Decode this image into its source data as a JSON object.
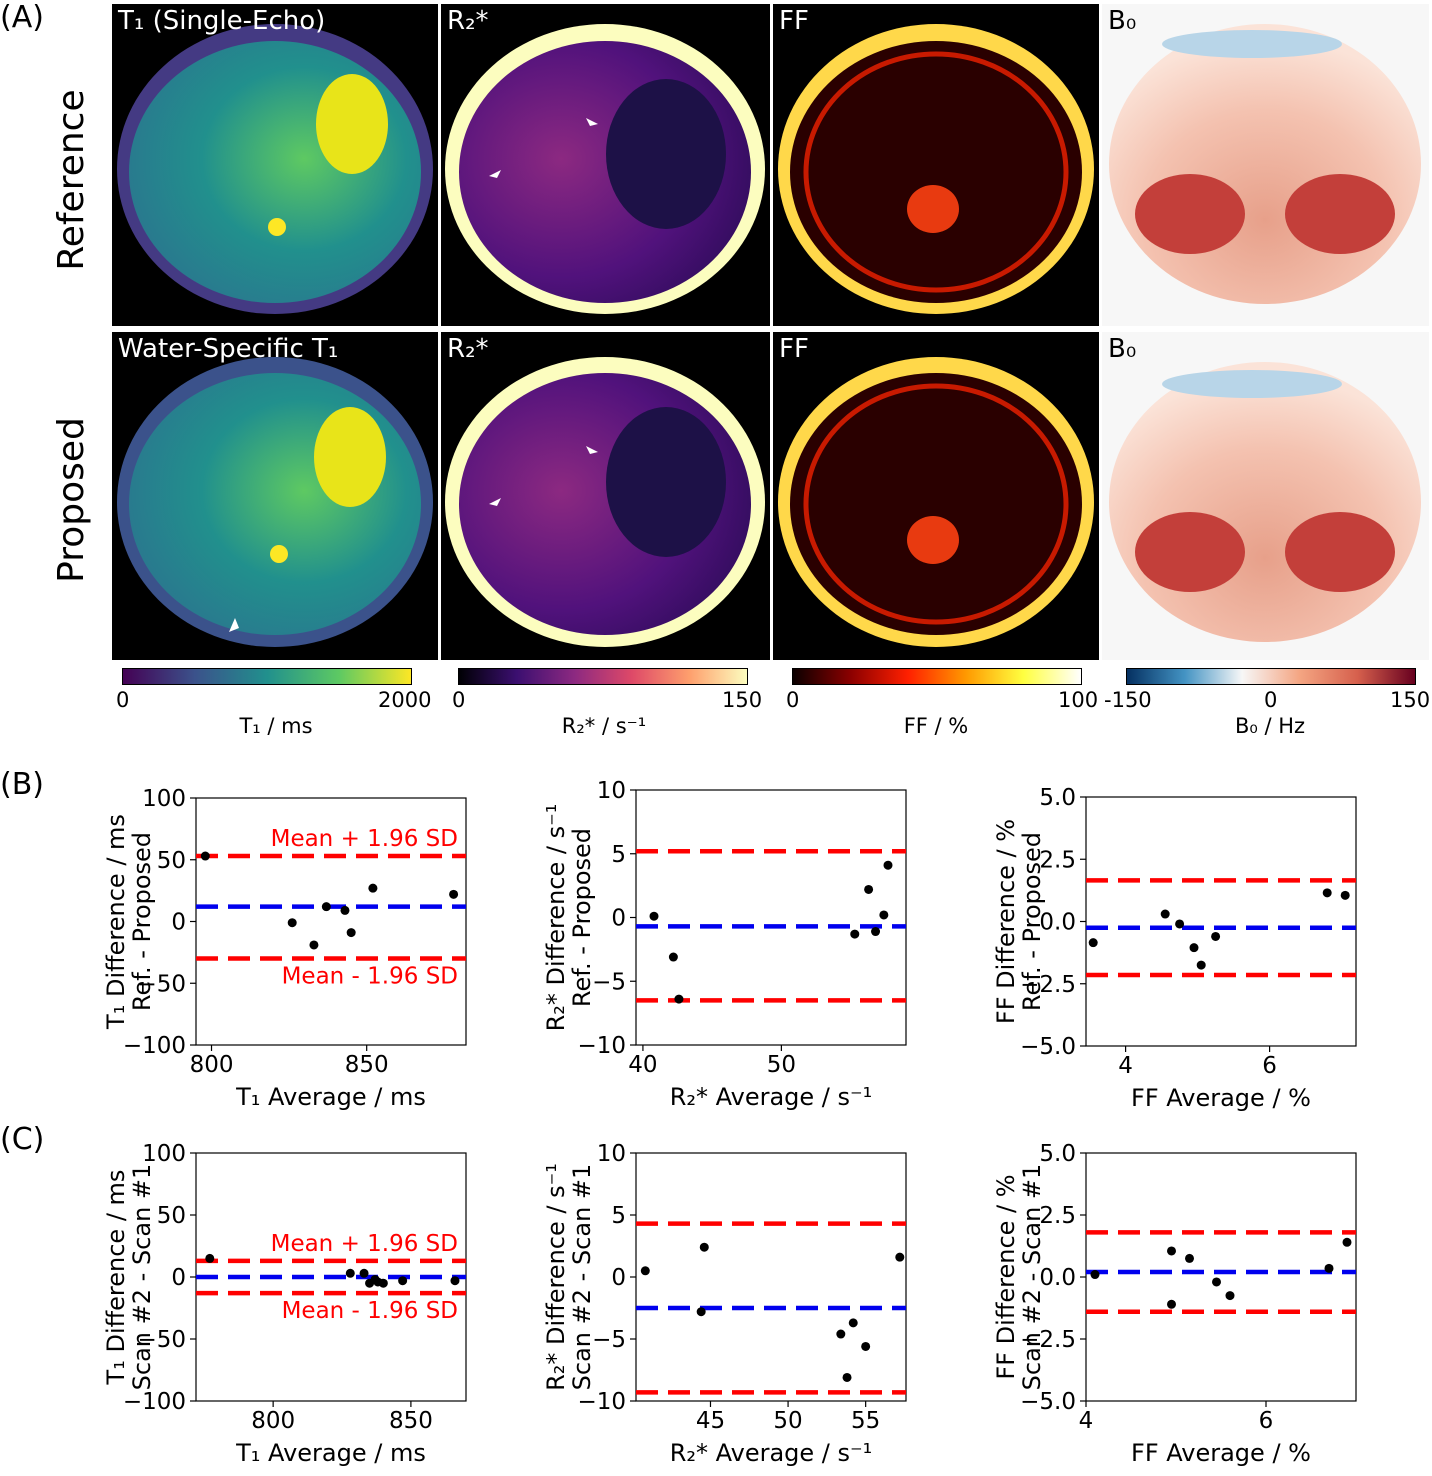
{
  "panels": {
    "a": "(A)",
    "b": "(B)",
    "c": "(C)"
  },
  "rows": {
    "reference": "Reference",
    "proposed": "Proposed"
  },
  "maps": {
    "reference": [
      {
        "title": "T₁ (Single-Echo)",
        "cmap": "viridis"
      },
      {
        "title": "R₂*",
        "cmap": "magma"
      },
      {
        "title": "FF",
        "cmap": "hot"
      },
      {
        "title": "B₀",
        "cmap": "rdbu"
      }
    ],
    "proposed": [
      {
        "title": "Water-Specific T₁",
        "cmap": "viridis"
      },
      {
        "title": "R₂*",
        "cmap": "magma"
      },
      {
        "title": "FF",
        "cmap": "hot"
      },
      {
        "title": "B₀",
        "cmap": "rdbu"
      }
    ]
  },
  "colorbars": [
    {
      "min": "0",
      "max": "2000",
      "label": "T₁ / ms",
      "colors": [
        "#440154",
        "#3b528b",
        "#21908d",
        "#5dc963",
        "#fde725"
      ]
    },
    {
      "min": "0",
      "max": "150",
      "label": "R₂* / s⁻¹",
      "colors": [
        "#000004",
        "#3b0f70",
        "#8c2981",
        "#de4968",
        "#fe9f6d",
        "#fcfdbf"
      ]
    },
    {
      "min": "0",
      "max": "100",
      "label": "FF / %",
      "colors": [
        "#0b0000",
        "#8b0000",
        "#ff2000",
        "#ff9900",
        "#ffff40",
        "#ffffff"
      ]
    },
    {
      "min": "-150",
      "mid": "0",
      "max": "150",
      "label": "B₀ / Hz",
      "colors": [
        "#053061",
        "#4393c3",
        "#f7f7f7",
        "#f4a582",
        "#d6604d",
        "#67001f"
      ]
    }
  ],
  "annotations": {
    "upper": "Mean + 1.96 SD",
    "lower": "Mean - 1.96 SD"
  },
  "colors": {
    "mean": "#0000ee",
    "limits": "#ff0000",
    "points": "#000000"
  },
  "chart_data": [
    {
      "id": "b1",
      "type": "scatter",
      "xlabel": "T₁ Average / ms",
      "ylabel": [
        "T₁ Difference / ms",
        "Ref. - Proposed"
      ],
      "xlim": [
        795,
        882
      ],
      "ylim": [
        -100,
        100
      ],
      "xticks": [
        800,
        850
      ],
      "yticks": [
        -100,
        -50,
        0,
        50,
        100
      ],
      "mean": 12,
      "upper": 53,
      "lower": -30,
      "annotate": true,
      "points": [
        [
          798,
          53
        ],
        [
          826,
          -1
        ],
        [
          833,
          -19
        ],
        [
          837,
          12
        ],
        [
          843,
          9
        ],
        [
          845,
          -9
        ],
        [
          852,
          27
        ],
        [
          878,
          22
        ]
      ]
    },
    {
      "id": "b2",
      "type": "scatter",
      "xlabel": "R₂* Average / s⁻¹",
      "ylabel": [
        "R₂* Difference / s⁻¹",
        "Ref. - Proposed"
      ],
      "xlim": [
        39.5,
        59
      ],
      "ylim": [
        -10,
        10
      ],
      "xticks": [
        40,
        50
      ],
      "yticks": [
        -10,
        -5,
        0,
        5,
        10
      ],
      "mean": -0.7,
      "upper": 5.2,
      "lower": -6.5,
      "annotate": false,
      "points": [
        [
          40.8,
          0.1
        ],
        [
          42.2,
          -3.1
        ],
        [
          42.6,
          -6.4
        ],
        [
          55.3,
          -1.3
        ],
        [
          56.3,
          2.2
        ],
        [
          56.8,
          -1.1
        ],
        [
          57.4,
          0.2
        ],
        [
          57.7,
          4.1
        ]
      ]
    },
    {
      "id": "b3",
      "type": "scatter",
      "xlabel": "FF Average / %",
      "ylabel": [
        "FF Difference / %",
        "Ref. - Proposed"
      ],
      "xlim": [
        3.45,
        7.2
      ],
      "ylim": [
        -5,
        5
      ],
      "xticks": [
        4,
        6
      ],
      "yticks": [
        -5.0,
        -2.5,
        0.0,
        2.5,
        5.0
      ],
      "mean": -0.25,
      "upper": 1.65,
      "lower": -2.15,
      "annotate": false,
      "points": [
        [
          3.55,
          -0.85
        ],
        [
          4.55,
          0.3
        ],
        [
          4.75,
          -0.1
        ],
        [
          4.95,
          -1.05
        ],
        [
          5.05,
          -1.75
        ],
        [
          5.25,
          -0.6
        ],
        [
          6.8,
          1.15
        ],
        [
          7.05,
          1.05
        ]
      ]
    },
    {
      "id": "c1",
      "type": "scatter",
      "xlabel": "T₁ Average / ms",
      "ylabel": [
        "T₁ Difference / ms",
        "Scan #2 - Scan #1"
      ],
      "xlim": [
        772,
        870
      ],
      "ylim": [
        -100,
        100
      ],
      "xticks": [
        800,
        850
      ],
      "yticks": [
        -100,
        -50,
        0,
        50,
        100
      ],
      "mean": 0,
      "upper": 13,
      "lower": -13,
      "annotate": true,
      "points": [
        [
          777,
          15
        ],
        [
          828,
          3
        ],
        [
          833,
          3
        ],
        [
          835,
          -5
        ],
        [
          837,
          -2
        ],
        [
          838,
          -4
        ],
        [
          840,
          -5
        ],
        [
          847,
          -3
        ],
        [
          866,
          -3
        ]
      ]
    },
    {
      "id": "c2",
      "type": "scatter",
      "xlabel": "R₂* Average / s⁻¹",
      "ylabel": [
        "R₂* Difference / s⁻¹",
        "Scan #2 - Scan #1"
      ],
      "xlim": [
        40.2,
        57.6
      ],
      "ylim": [
        -10,
        10
      ],
      "xticks": [
        45,
        50,
        55
      ],
      "yticks": [
        -10,
        -5,
        0,
        5,
        10
      ],
      "mean": -2.5,
      "upper": 4.3,
      "lower": -9.3,
      "annotate": false,
      "points": [
        [
          40.8,
          0.5
        ],
        [
          44.4,
          -2.8
        ],
        [
          44.6,
          2.4
        ],
        [
          53.4,
          -4.6
        ],
        [
          53.8,
          -8.1
        ],
        [
          54.2,
          -3.7
        ],
        [
          55.0,
          -5.6
        ],
        [
          57.2,
          1.6
        ]
      ]
    },
    {
      "id": "c3",
      "type": "scatter",
      "xlabel": "FF Average / %",
      "ylabel": [
        "FF Difference / %",
        "Scan #2 - Scan #1"
      ],
      "xlim": [
        4.0,
        7.0
      ],
      "ylim": [
        -5,
        5
      ],
      "xticks": [
        4,
        6
      ],
      "yticks": [
        -5.0,
        -2.5,
        0.0,
        2.5,
        5.0
      ],
      "mean": 0.2,
      "upper": 1.8,
      "lower": -1.4,
      "annotate": false,
      "points": [
        [
          4.1,
          0.1
        ],
        [
          4.95,
          -1.1
        ],
        [
          4.95,
          1.05
        ],
        [
          5.15,
          0.75
        ],
        [
          5.45,
          -0.2
        ],
        [
          5.6,
          -0.75
        ],
        [
          6.7,
          0.35
        ],
        [
          6.9,
          1.4
        ]
      ]
    }
  ]
}
